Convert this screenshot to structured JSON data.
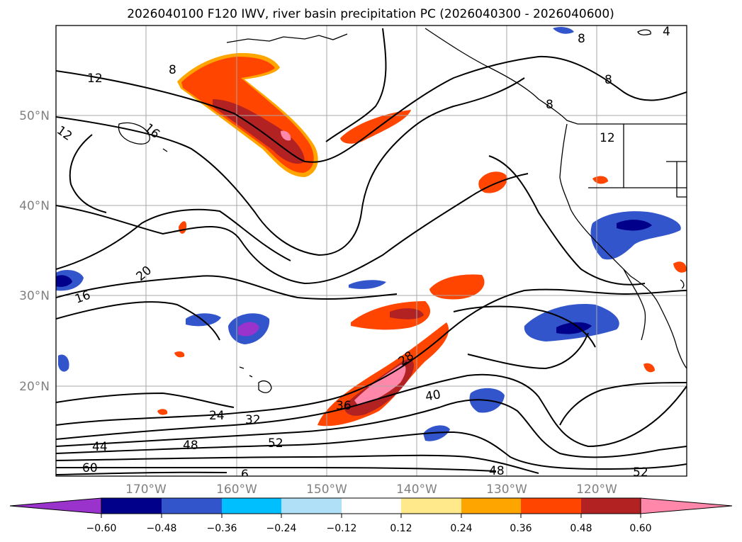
{
  "title": "2026040100 F120 IWV, river basin precipitation PC (2026040300 - 2026040600)",
  "map": {
    "lon_labels": [
      "170°W",
      "160°W",
      "150°W",
      "140°W",
      "130°W",
      "120°W"
    ],
    "lat_labels": [
      "50°N",
      "40°N",
      "30°N",
      "20°N"
    ],
    "contour_labels": [
      "12",
      "8",
      "16",
      "12",
      "20",
      "16",
      "28",
      "40",
      "24",
      "32",
      "36",
      "44",
      "48",
      "52",
      "60",
      "6",
      "48",
      "52",
      "12",
      "8",
      "8",
      "8",
      "4"
    ]
  },
  "colorbar": {
    "tick_labels": [
      "−0.60",
      "−0.48",
      "−0.36",
      "−0.24",
      "−0.12",
      "0.12",
      "0.24",
      "0.36",
      "0.48",
      "0.60"
    ],
    "colors": [
      "#9933cc",
      "#00008b",
      "#3355cc",
      "#00bfff",
      "#b0e0f8",
      "#ffffff",
      "#ffe98a",
      "#ffa500",
      "#ff4500",
      "#b22222",
      "#ff88aa"
    ]
  },
  "colors": {
    "red": "#ff4500",
    "darkred": "#b22222",
    "pink": "#ff88aa",
    "orange": "#ffa500",
    "yellow": "#ffe98a",
    "blue": "#3355cc",
    "navy": "#00008b",
    "cyan": "#00bfff",
    "purple": "#9933cc"
  }
}
